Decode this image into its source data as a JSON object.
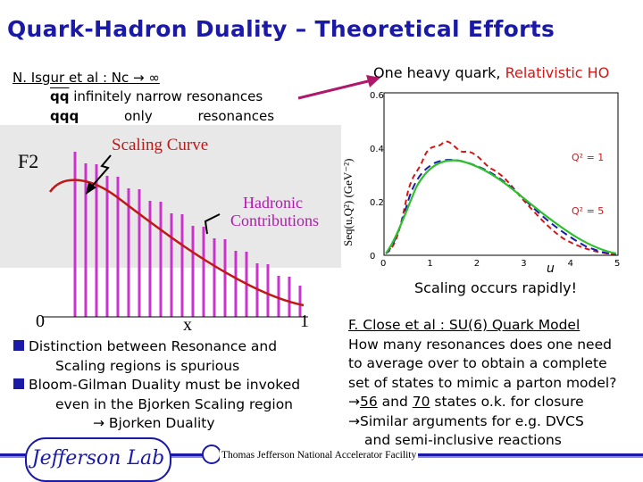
{
  "title": "Quark-Hadron Duality – Theoretical Efforts",
  "isgur": "N. Isgur et al : Nc → ∞",
  "isgur_lines": [
    {
      "pre": "qq",
      "text": " infinitely narrow resonances"
    },
    {
      "pre": "qqq",
      "text": " only resonances"
    }
  ],
  "heavy_prefix": "One heavy quark, ",
  "heavy_red": "Relativistic HO",
  "left_figure": {
    "f2_label": "F2",
    "scaling_label": "Scaling Curve",
    "hadronic_label_1": "Hadronic",
    "hadronic_label_2": "Contributions",
    "x_label": "x",
    "x0": "0",
    "x1": "1"
  },
  "right_figure": {
    "ylabel": "Seq(u,Q²) (GeV⁻²)",
    "xlabel": "u",
    "ytick_labels": [
      "0",
      "0.2",
      "0.4",
      "0.6"
    ],
    "xtick_labels": [
      "0",
      "1",
      "2",
      "3",
      "4",
      "5"
    ],
    "q2_1": "Q² = 1",
    "q2_5": "Q² = 5"
  },
  "scaling_note": "Scaling occurs rapidly!",
  "left_bullets": [
    {
      "lines": [
        "Distinction between Resonance and",
        "Scaling regions is spurious"
      ]
    },
    {
      "lines": [
        "Bloom-Gilman Duality must be invoked",
        "even in the Bjorken Scaling region",
        "→ Bjorken Duality"
      ]
    }
  ],
  "close": {
    "title": "F. Close et al : SU(6) Quark Model",
    "lines": [
      "How many resonances does one need",
      "to average over to obtain a complete",
      "set of states to mimic a parton model?"
    ],
    "arrow1_u1": "56",
    "arrow1_mid": " and ",
    "arrow1_u2": "70",
    "arrow1_rest": " states o.k. for closure",
    "arrow2": "Similar arguments for e.g. DVCS",
    "arrow2_cont": "and semi-inclusive reactions"
  },
  "footer": "Thomas Jefferson National Accelerator Facility",
  "logo_text": "Jefferson Lab",
  "colors": {
    "title": "#1a1aa6",
    "accent_red": "#d01818",
    "arrow_magenta": "#b0186a"
  }
}
